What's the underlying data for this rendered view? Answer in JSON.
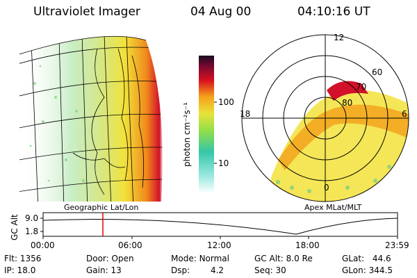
{
  "header": {
    "instrument": "Ultraviolet Imager",
    "date": "04 Aug 00",
    "time": "04:10:16 UT"
  },
  "colorbar": {
    "unit_label": "photon cm⁻²s⁻¹",
    "ticks": [
      "100",
      "10"
    ]
  },
  "geo_panel": {
    "caption": "Geographic Lat/Lon"
  },
  "polar_panel": {
    "caption": "Apex MLat/MLT",
    "mlt_labels": [
      "12",
      "18",
      "6",
      "0"
    ],
    "mlat_labels": [
      "60",
      "70",
      "80"
    ]
  },
  "orbit_plot": {
    "ylabel": "GC Alt",
    "yticks": [
      "9.0",
      "1.8"
    ],
    "xticks": [
      "00:00",
      "06:00",
      "12:00",
      "18:00",
      "23:59"
    ],
    "marker_time": "04:10"
  },
  "status": {
    "flt": {
      "label": "Flt:",
      "value": "1356"
    },
    "ip": {
      "label": "IP:",
      "value": "18.0"
    },
    "door": {
      "label": "Door:",
      "value": "Open"
    },
    "gain": {
      "label": "Gain:",
      "value": "13"
    },
    "mode": {
      "label": "Mode:",
      "value": "Normal"
    },
    "dsp": {
      "label": "Dsp:",
      "value": "4.2"
    },
    "gc_alt": {
      "label": "GC Alt:",
      "value": "8.0 Re"
    },
    "seq": {
      "label": "Seq:",
      "value": "30"
    },
    "glat": {
      "label": "GLat:",
      "value": "44.6"
    },
    "glon": {
      "label": "GLon:",
      "value": "344.5"
    }
  },
  "colors": {
    "marker": "#e00000",
    "aurora_low": "#6fd26f",
    "aurora_mid": "#f2e23a",
    "aurora_high": "#f08a1c",
    "aurora_peak": "#d2102a"
  }
}
